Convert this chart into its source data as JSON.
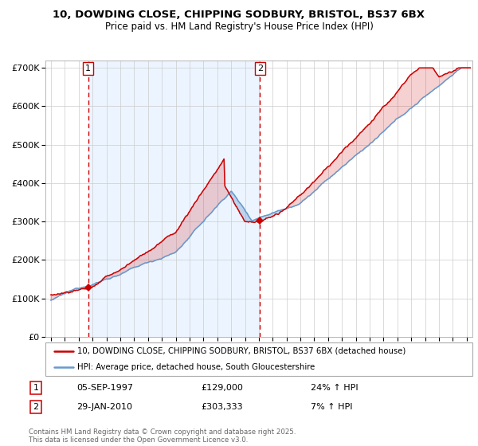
{
  "title_line1": "10, DOWDING CLOSE, CHIPPING SODBURY, BRISTOL, BS37 6BX",
  "title_line2": "Price paid vs. HM Land Registry's House Price Index (HPI)",
  "ylim": [
    0,
    720000
  ],
  "yticks": [
    0,
    100000,
    200000,
    300000,
    400000,
    500000,
    600000,
    700000
  ],
  "ytick_labels": [
    "£0",
    "£100K",
    "£200K",
    "£300K",
    "£400K",
    "£500K",
    "£600K",
    "£700K"
  ],
  "xlim_start": 1994.6,
  "xlim_end": 2025.4,
  "marker1_x": 1997.68,
  "marker1_y": 129000,
  "marker2_x": 2010.08,
  "marker2_y": 303333,
  "vline1_x": 1997.68,
  "vline2_x": 2010.08,
  "legend_line1": "10, DOWDING CLOSE, CHIPPING SODBURY, BRISTOL, BS37 6BX (detached house)",
  "legend_line2": "HPI: Average price, detached house, South Gloucestershire",
  "annotation1_date": "05-SEP-1997",
  "annotation1_price": "£129,000",
  "annotation1_hpi": "24% ↑ HPI",
  "annotation2_date": "29-JAN-2010",
  "annotation2_price": "£303,333",
  "annotation2_hpi": "7% ↑ HPI",
  "footer": "Contains HM Land Registry data © Crown copyright and database right 2025.\nThis data is licensed under the Open Government Licence v3.0.",
  "line_color_red": "#cc0000",
  "line_color_blue": "#6699cc",
  "fill_between_color": "#ddeeff",
  "vline_shade_color": "#ddeeff",
  "bg_color": "#ffffff",
  "grid_color": "#cccccc"
}
